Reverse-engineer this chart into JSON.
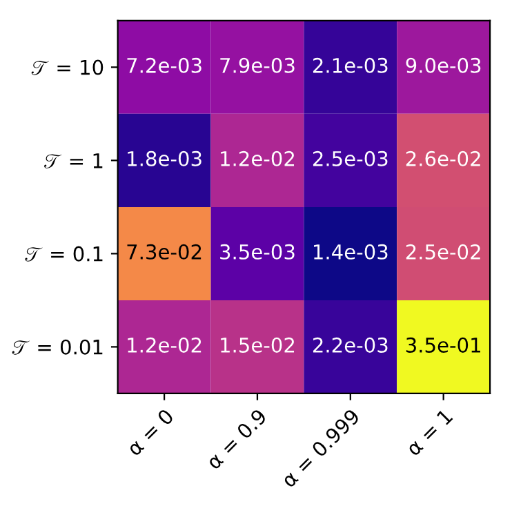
{
  "chart_data": {
    "type": "heatmap",
    "categories": [
      "α = 0",
      "α = 0.9",
      "α = 0.999",
      "α = 1"
    ],
    "y_categories": [
      "𝒯 = 10",
      "𝒯 = 1",
      "𝒯 = 0.1",
      "𝒯 = 0.01"
    ],
    "cells": [
      [
        0.0072,
        0.0079,
        0.0021,
        0.009
      ],
      [
        0.0018,
        0.012,
        0.0025,
        0.026
      ],
      [
        0.073,
        0.0035,
        0.0014,
        0.025
      ],
      [
        0.012,
        0.015,
        0.0022,
        0.35
      ]
    ],
    "cell_labels": [
      [
        "7.2e-03",
        "7.9e-03",
        "2.1e-03",
        "9.0e-03"
      ],
      [
        "1.8e-03",
        "1.2e-02",
        "2.5e-03",
        "2.6e-02"
      ],
      [
        "7.3e-02",
        "3.5e-03",
        "1.4e-03",
        "2.5e-02"
      ],
      [
        "1.2e-02",
        "1.5e-02",
        "2.2e-03",
        "3.5e-01"
      ]
    ]
  }
}
